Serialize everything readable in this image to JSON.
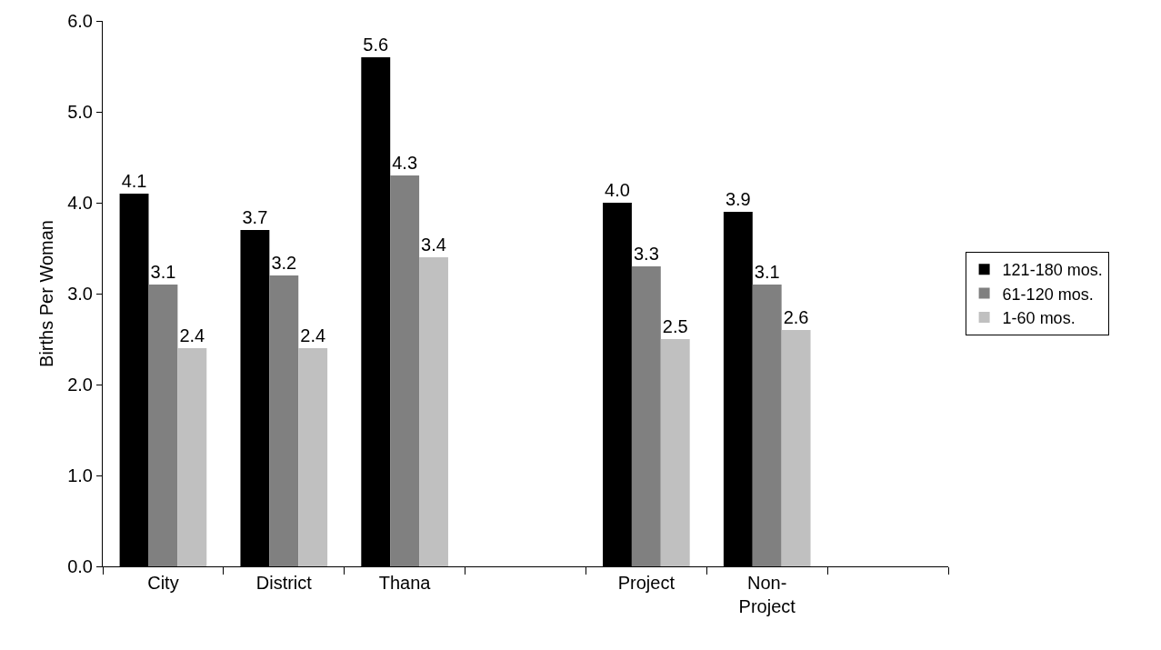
{
  "chart_data": {
    "type": "bar",
    "ylabel": "Births Per Woman",
    "categories": [
      "City",
      "District",
      "Thana",
      null,
      "Project",
      "Non-\nProject",
      null
    ],
    "series": [
      {
        "name": "121-180 mos.",
        "color": "#000000",
        "values": [
          4.1,
          3.7,
          5.6,
          null,
          4.0,
          3.9,
          null
        ],
        "value_labels": [
          "4.1",
          "3.7",
          "5.6",
          null,
          "4.0",
          "3.9",
          null
        ]
      },
      {
        "name": "61-120 mos.",
        "color": "#808080",
        "values": [
          3.1,
          3.2,
          4.3,
          null,
          3.3,
          3.1,
          null
        ],
        "value_labels": [
          "3.1",
          "3.2",
          "4.3",
          null,
          "3.3",
          "3.1",
          null
        ]
      },
      {
        "name": "1-60 mos.",
        "color": "#c0c0c0",
        "values": [
          2.4,
          2.4,
          3.4,
          null,
          2.5,
          2.6,
          null
        ],
        "value_labels": [
          "2.4",
          "2.4",
          "3.4",
          null,
          "2.5",
          "2.6",
          null
        ]
      }
    ],
    "ylim": [
      0,
      6
    ],
    "yticks": [
      {
        "value": 0,
        "label": "0.0"
      },
      {
        "value": 1,
        "label": "1.0"
      },
      {
        "value": 2,
        "label": "2.0"
      },
      {
        "value": 3,
        "label": "3.0"
      },
      {
        "value": 4,
        "label": "4.0"
      },
      {
        "value": 5,
        "label": "5.0"
      },
      {
        "value": 6,
        "label": "6.0"
      }
    ],
    "grid": false,
    "legend": "right"
  }
}
